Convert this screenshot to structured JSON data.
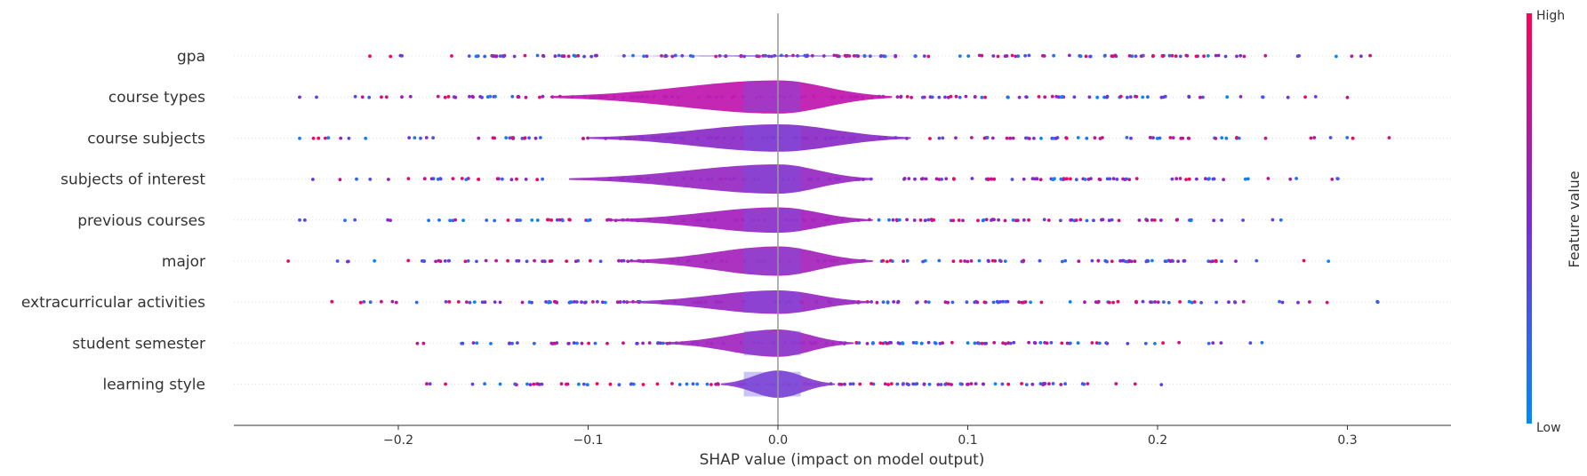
{
  "chart_data": {
    "type": "violin",
    "xlabel": "SHAP value (impact on model output)",
    "xlim": [
      -0.29,
      0.35
    ],
    "xticks": [
      -0.2,
      -0.1,
      0.0,
      0.1,
      0.2,
      0.3
    ],
    "xtick_labels": [
      "−0.2",
      "−0.1",
      "0.0",
      "0.1",
      "0.2",
      "0.3"
    ],
    "colorbar": {
      "title": "Feature value",
      "high": "High",
      "low": "Low",
      "low_color": "#008bfb",
      "high_color": "#ff0052"
    },
    "features": [
      {
        "name": "gpa",
        "range": [
          -0.215,
          0.312
        ],
        "core": [
          -0.09,
          0.07
        ],
        "violin": [
          -0.09,
          0.07
        ],
        "width": 0.03,
        "color": "#7a3fd6",
        "n": 170
      },
      {
        "name": "course types",
        "range": [
          -0.252,
          0.3
        ],
        "core": [
          -0.12,
          0.06
        ],
        "violin": [
          -0.12,
          0.06
        ],
        "width": 0.85,
        "color": "#c01bb0",
        "n": 150
      },
      {
        "name": "course subjects",
        "range": [
          -0.252,
          0.322
        ],
        "core": [
          -0.1,
          0.07
        ],
        "violin": [
          -0.1,
          0.07
        ],
        "width": 0.7,
        "color": "#8e2fc8",
        "n": 140
      },
      {
        "name": "subjects of interest",
        "range": [
          -0.245,
          0.295
        ],
        "core": [
          -0.11,
          0.05
        ],
        "violin": [
          -0.11,
          0.05
        ],
        "width": 0.75,
        "color": "#9a2cc4",
        "n": 140
      },
      {
        "name": "previous courses",
        "range": [
          -0.252,
          0.265
        ],
        "core": [
          -0.09,
          0.05
        ],
        "violin": [
          -0.09,
          0.05
        ],
        "width": 0.65,
        "color": "#a625bf",
        "n": 140
      },
      {
        "name": "major",
        "range": [
          -0.258,
          0.29
        ],
        "core": [
          -0.08,
          0.05
        ],
        "violin": [
          -0.08,
          0.05
        ],
        "width": 0.75,
        "color": "#a728bd",
        "n": 140
      },
      {
        "name": "extracurricular activities",
        "range": [
          -0.235,
          0.316
        ],
        "core": [
          -0.08,
          0.05
        ],
        "violin": [
          -0.08,
          0.05
        ],
        "width": 0.6,
        "color": "#9b2cc3",
        "n": 150
      },
      {
        "name": "student semester",
        "range": [
          -0.19,
          0.255
        ],
        "core": [
          -0.06,
          0.04
        ],
        "violin": [
          -0.06,
          0.04
        ],
        "width": 0.7,
        "color": "#a32ac0",
        "n": 140
      },
      {
        "name": "learning style",
        "range": [
          -0.185,
          0.202
        ],
        "core": [
          -0.03,
          0.03
        ],
        "violin": [
          -0.03,
          0.03
        ],
        "width": 0.7,
        "color": "#8a40d0",
        "n": 120
      }
    ]
  }
}
